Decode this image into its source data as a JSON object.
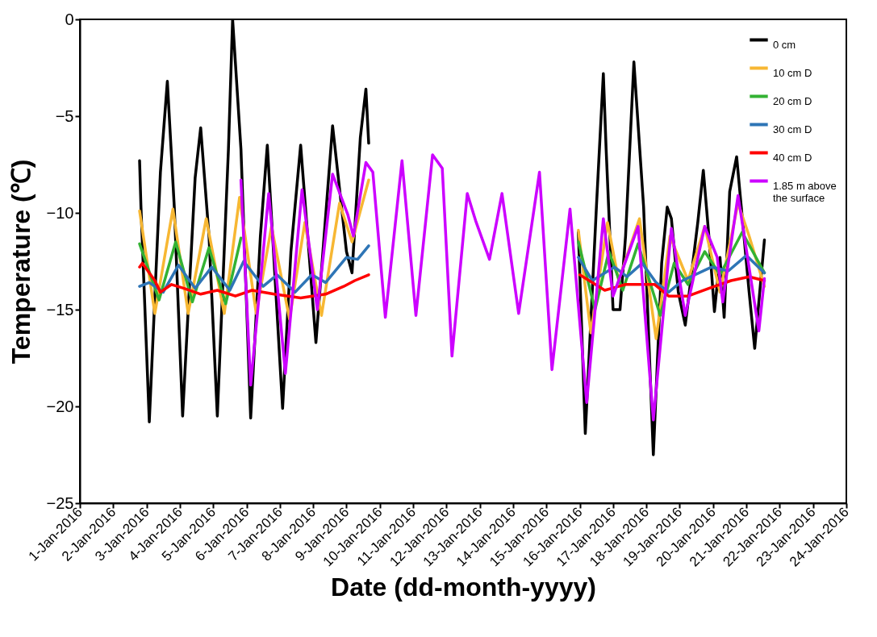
{
  "chart_data": {
    "type": "line",
    "xlabel": "Date (dd-month-yyyy)",
    "ylabel": "Temperature (℃)",
    "xlim": [
      "2016-01-01",
      "2016-01-24"
    ],
    "xticks": [
      {
        "value": "2016-01-01",
        "label": "1-Jan-2016"
      },
      {
        "value": "2016-01-02",
        "label": "2-Jan-2016"
      },
      {
        "value": "2016-01-03",
        "label": "3-Jan-2016"
      },
      {
        "value": "2016-01-04",
        "label": "4-Jan-2016"
      },
      {
        "value": "2016-01-05",
        "label": "5-Jan-2016"
      },
      {
        "value": "2016-01-06",
        "label": "6-Jan-2016"
      },
      {
        "value": "2016-01-07",
        "label": "7-Jan-2016"
      },
      {
        "value": "2016-01-08",
        "label": "8-Jan-2016"
      },
      {
        "value": "2016-01-09",
        "label": "9-Jan-2016"
      },
      {
        "value": "2016-01-10",
        "label": "10-Jan-2016"
      },
      {
        "value": "2016-01-11",
        "label": "11-Jan-2016"
      },
      {
        "value": "2016-01-12",
        "label": "12-Jan-2016"
      },
      {
        "value": "2016-01-13",
        "label": "13-Jan-2016"
      },
      {
        "value": "2016-01-14",
        "label": "14-Jan-2016"
      },
      {
        "value": "2016-01-15",
        "label": "15-Jan-2016"
      },
      {
        "value": "2016-01-16",
        "label": "16-Jan-2016"
      },
      {
        "value": "2016-01-17",
        "label": "17-Jan-2016"
      },
      {
        "value": "2016-01-18",
        "label": "18-Jan-2016"
      },
      {
        "value": "2016-01-19",
        "label": "19-Jan-2016"
      },
      {
        "value": "2016-01-20",
        "label": "20-Jan-2016"
      },
      {
        "value": "2016-01-21",
        "label": "21-Jan-2016"
      },
      {
        "value": "2016-01-22",
        "label": "22-Jan-2016"
      },
      {
        "value": "2016-01-23",
        "label": "23-Jan-2016"
      },
      {
        "value": "2016-01-24",
        "label": "24-Jan-2016"
      }
    ],
    "ylim": [
      -25,
      0
    ],
    "yticks": [
      -25,
      -20,
      -15,
      -10,
      -5,
      0
    ],
    "grid": false,
    "legend": "top right",
    "line_style": "solid",
    "series": [
      {
        "name": "0 cm",
        "color": "#000000",
        "x": [
          "2016-01-02T19:00",
          "2016-01-02T20:00",
          "2016-01-03T02:00",
          "2016-01-03T10:00",
          "2016-01-03T15:00",
          "2016-01-03T20:00",
          "2016-01-04T02:00",
          "2016-01-04T11:00",
          "2016-01-04T15:00",
          "2016-01-04T21:00",
          "2016-01-05T03:00",
          "2016-01-05T11:00",
          "2016-01-05T14:00",
          "2016-01-05T20:00",
          "2016-01-06T03:00",
          "2016-01-06T10:00",
          "2016-01-06T15:00",
          "2016-01-07T02:00",
          "2016-01-07T08:00",
          "2016-01-07T15:00",
          "2016-01-08T02:00",
          "2016-01-08T14:00",
          "2016-01-09T00:00",
          "2016-01-09T04:00",
          "2016-01-09T10:00",
          "2016-01-09T14:00",
          "2016-01-09T16:00",
          "2016-01-12T00:00",
          "2016-01-15T23:00",
          "2016-01-16T04:00",
          "2016-01-16T12:00",
          "2016-01-16T17:00",
          "2016-01-16T19:00",
          "2016-01-17T00:00",
          "2016-01-17T05:00",
          "2016-01-17T09:00",
          "2016-01-17T15:00",
          "2016-01-17T22:00",
          "2016-01-18T05:00",
          "2016-01-18T11:00",
          "2016-01-18T15:00",
          "2016-01-18T18:00",
          "2016-01-18T23:00",
          "2016-01-19T04:00",
          "2016-01-19T13:00",
          "2016-01-19T17:00",
          "2016-01-19T21:00",
          "2016-01-20T01:00",
          "2016-01-20T05:00",
          "2016-01-20T08:00",
          "2016-01-20T12:00",
          "2016-01-20T17:00",
          "2016-01-21T02:00",
          "2016-01-21T06:00",
          "2016-01-21T13:00"
        ],
        "values": [
          -7.3,
          -9.7,
          -20.8,
          -7.9,
          -3.2,
          -9.7,
          -20.5,
          -8.2,
          -5.6,
          -11.2,
          -20.5,
          -6.7,
          0,
          -6.7,
          -20.6,
          -11.2,
          -6.5,
          -20.1,
          -12,
          -6.5,
          -16.7,
          -5.5,
          -12,
          -13.1,
          -6.1,
          -3.6,
          -6.4,
          null,
          -11,
          -21.4,
          -9.7,
          -2.8,
          -6.7,
          -15,
          -15,
          -11.2,
          -2.2,
          -9.7,
          -22.5,
          -12.6,
          -9.7,
          -10.3,
          -14.1,
          -15.8,
          -10.5,
          -7.8,
          -11.2,
          -15.1,
          -12.3,
          -15.4,
          -8.9,
          -7.1,
          -14.1,
          -17,
          -11.4
        ]
      },
      {
        "name": "10 cm D",
        "color": "#f7b733",
        "x": [
          "2016-01-02T19:00",
          "2016-01-03T06:00",
          "2016-01-03T19:00",
          "2016-01-04T06:00",
          "2016-01-04T19:00",
          "2016-01-05T08:00",
          "2016-01-05T19:00",
          "2016-01-06T07:00",
          "2016-01-06T18:00",
          "2016-01-07T07:00",
          "2016-01-07T18:00",
          "2016-01-08T06:00",
          "2016-01-08T19:00",
          "2016-01-09T04:00",
          "2016-01-09T16:00",
          "2016-01-12T00:00",
          "2016-01-15T23:00",
          "2016-01-16T08:00",
          "2016-01-16T20:00",
          "2016-01-17T04:00",
          "2016-01-17T19:00",
          "2016-01-18T07:00",
          "2016-01-18T17:00",
          "2016-01-19T06:00",
          "2016-01-19T18:00",
          "2016-01-20T05:00",
          "2016-01-20T18:00",
          "2016-01-21T02:00",
          "2016-01-21T13:00"
        ],
        "values": [
          -9.9,
          -15.2,
          -9.8,
          -15.2,
          -10.3,
          -15.2,
          -9.2,
          -15.2,
          -10.7,
          -15.5,
          -10.5,
          -15.3,
          -9.5,
          -11.5,
          -8.3,
          null,
          -10.9,
          -16.2,
          -10.5,
          -13.5,
          -10.3,
          -16.5,
          -11.2,
          -13.5,
          -10.7,
          -14.1,
          -9.5,
          -11.2,
          -13.8
        ]
      },
      {
        "name": "20 cm D",
        "color": "#33b233",
        "x": [
          "2016-01-02T19:00",
          "2016-01-03T09:00",
          "2016-01-03T21:00",
          "2016-01-04T09:00",
          "2016-01-04T21:00",
          "2016-01-05T09:00",
          "2016-01-05T20:00",
          "2016-01-12T00:00",
          "2016-01-15T23:00",
          "2016-01-16T11:00",
          "2016-01-16T21:00",
          "2016-01-17T07:00",
          "2016-01-17T18:00",
          "2016-01-18T10:00",
          "2016-01-18T20:00",
          "2016-01-19T06:00",
          "2016-01-19T18:00",
          "2016-01-20T05:00",
          "2016-01-20T21:00",
          "2016-01-21T13:00"
        ],
        "values": [
          -11.6,
          -14.5,
          -11.5,
          -14.6,
          -11.8,
          -14.7,
          -11.3,
          null,
          -11.5,
          -15,
          -12,
          -14,
          -11.6,
          -15.3,
          -12.6,
          -13.7,
          -12,
          -13.2,
          -11,
          -13.1
        ]
      },
      {
        "name": "30 cm D",
        "color": "#2e75b6",
        "x": [
          "2016-01-02T19:00",
          "2016-01-03T02:00",
          "2016-01-03T12:00",
          "2016-01-03T23:00",
          "2016-01-04T11:00",
          "2016-01-04T23:00",
          "2016-01-05T12:00",
          "2016-01-05T22:00",
          "2016-01-06T12:00",
          "2016-01-06T22:00",
          "2016-01-07T11:00",
          "2016-01-07T23:00",
          "2016-01-08T09:00",
          "2016-01-09T00:00",
          "2016-01-09T08:00",
          "2016-01-09T16:00",
          "2016-01-12T00:00",
          "2016-01-15T23:00",
          "2016-01-16T09:00",
          "2016-01-17T01:00",
          "2016-01-17T10:00",
          "2016-01-17T21:00",
          "2016-01-18T07:00",
          "2016-01-18T16:00",
          "2016-01-19T02:00",
          "2016-01-19T23:00",
          "2016-01-20T11:00",
          "2016-01-21T00:00",
          "2016-01-21T13:00"
        ],
        "values": [
          -13.8,
          -13.6,
          -14.1,
          -12.7,
          -13.9,
          -12.8,
          -14,
          -12.5,
          -13.8,
          -13.2,
          -14.1,
          -13.2,
          -13.6,
          -12.3,
          -12.4,
          -11.7,
          null,
          -12.3,
          -13.5,
          -12.8,
          -13.3,
          -12.6,
          -13.6,
          -14.1,
          -13.5,
          -12.8,
          -13,
          -12.2,
          -13.1
        ]
      },
      {
        "name": "40 cm D",
        "color": "#ff0000",
        "x": [
          "2016-01-02T19:00",
          "2016-01-02T21:00",
          "2016-01-03T06:00",
          "2016-01-03T10:00",
          "2016-01-03T18:00",
          "2016-01-04T03:00",
          "2016-01-04T15:00",
          "2016-01-05T03:00",
          "2016-01-05T16:00",
          "2016-01-06T04:00",
          "2016-01-06T20:00",
          "2016-01-07T15:00",
          "2016-01-08T09:00",
          "2016-01-08T22:00",
          "2016-01-09T06:00",
          "2016-01-09T16:00",
          "2016-01-12T00:00",
          "2016-01-16T00:00",
          "2016-01-16T18:00",
          "2016-01-17T09:00",
          "2016-01-18T06:00",
          "2016-01-18T16:00",
          "2016-01-19T06:00",
          "2016-01-19T21:00",
          "2016-01-20T13:00",
          "2016-01-21T02:00",
          "2016-01-21T13:00"
        ],
        "values": [
          -12.8,
          -12.6,
          -13.5,
          -14.1,
          -13.7,
          -13.9,
          -14.2,
          -14,
          -14.3,
          -14,
          -14.2,
          -14.4,
          -14.2,
          -13.8,
          -13.5,
          -13.2,
          null,
          -13.2,
          -14,
          -13.7,
          -13.7,
          -14.3,
          -14.3,
          -13.9,
          -13.5,
          -13.3,
          -13.5
        ]
      },
      {
        "name": "1.85 m above the surface",
        "color": "#cc00ff",
        "x": [
          "2016-01-05T20:00",
          "2016-01-06T03:00",
          "2016-01-06T16:00",
          "2016-01-07T04:00",
          "2016-01-07T16:00",
          "2016-01-08T03:00",
          "2016-01-08T14:00",
          "2016-01-09T01:00",
          "2016-01-09T05:00",
          "2016-01-09T14:00",
          "2016-01-09T19:00",
          "2016-01-10T04:00",
          "2016-01-10T16:00",
          "2016-01-11T02:00",
          "2016-01-11T14:00",
          "2016-01-11T21:00",
          "2016-01-12T04:00",
          "2016-01-12T15:00",
          "2016-01-12T21:00",
          "2016-01-13T07:00",
          "2016-01-13T16:00",
          "2016-01-14T04:00",
          "2016-01-14T19:00",
          "2016-01-15T04:00",
          "2016-01-15T17:00",
          "2016-01-16T05:00",
          "2016-01-16T17:00",
          "2016-01-17T00:00",
          "2016-01-17T18:00",
          "2016-01-18T05:00",
          "2016-01-18T18:00",
          "2016-01-19T04:00",
          "2016-01-19T18:00",
          "2016-01-20T03:00",
          "2016-01-20T07:00",
          "2016-01-20T18:00",
          "2016-01-21T09:00",
          "2016-01-21T13:00"
        ],
        "values": [
          -8.3,
          -18.9,
          -9,
          -18.3,
          -8.8,
          -15,
          -8,
          -10.1,
          -11.2,
          -7.4,
          -7.9,
          -15.4,
          -7.3,
          -15.3,
          -7,
          -7.7,
          -17.4,
          -9,
          -10.4,
          -12.4,
          -9,
          -15.2,
          -7.9,
          -18.1,
          -9.8,
          -19.8,
          -10.3,
          -14.3,
          -10.7,
          -20.7,
          -10.8,
          -15.3,
          -10.7,
          -12.3,
          -14.6,
          -9.1,
          -16.1,
          -13.4
        ]
      }
    ]
  }
}
